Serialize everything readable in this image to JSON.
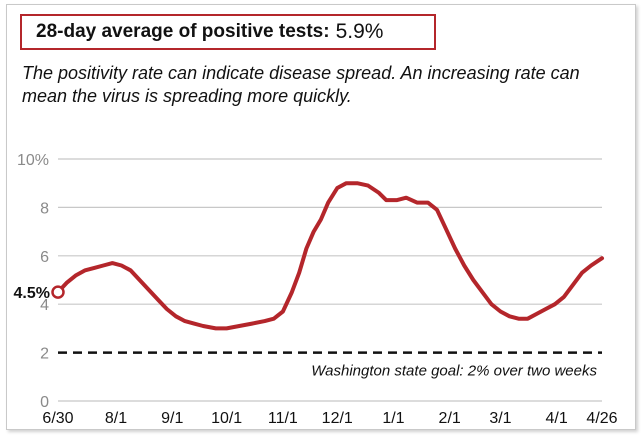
{
  "header": {
    "label": "28-day average of positive tests:",
    "value": "5.9%"
  },
  "subtitle": "The positivity rate can indicate disease spread. An increasing rate can mean the virus is spreading more quickly.",
  "colors": {
    "line": "#b4262b",
    "grid": "#c8c8c8",
    "goal": "#111111"
  },
  "chart_data": {
    "type": "line",
    "ylim": [
      0,
      10
    ],
    "yticks": [
      {
        "value": 0,
        "label": "0"
      },
      {
        "value": 2,
        "label": "2"
      },
      {
        "value": 4,
        "label": "4"
      },
      {
        "value": 6,
        "label": "6"
      },
      {
        "value": 8,
        "label": "8"
      },
      {
        "value": 10,
        "label": "10%"
      }
    ],
    "xlim": [
      "2020-06-30",
      "2021-04-26"
    ],
    "xticks": [
      {
        "date": "2020-06-30",
        "label": "6/30"
      },
      {
        "date": "2020-08-01",
        "label": "8/1"
      },
      {
        "date": "2020-09-01",
        "label": "9/1"
      },
      {
        "date": "2020-10-01",
        "label": "10/1"
      },
      {
        "date": "2020-11-01",
        "label": "11/1"
      },
      {
        "date": "2020-12-01",
        "label": "12/1"
      },
      {
        "date": "2021-01-01",
        "label": "1/1"
      },
      {
        "date": "2021-02-01",
        "label": "2/1"
      },
      {
        "date": "2021-03-01",
        "label": "3/1"
      },
      {
        "date": "2021-04-01",
        "label": "4/1"
      },
      {
        "date": "2021-04-26",
        "label": "4/26"
      }
    ],
    "start_label": "4.5%",
    "goal": {
      "value": 2,
      "label": "Washington state goal: 2% over two weeks"
    },
    "series": [
      {
        "points": [
          [
            "2020-06-30",
            4.5
          ],
          [
            "2020-07-05",
            4.9
          ],
          [
            "2020-07-10",
            5.2
          ],
          [
            "2020-07-15",
            5.4
          ],
          [
            "2020-07-20",
            5.5
          ],
          [
            "2020-07-25",
            5.6
          ],
          [
            "2020-07-30",
            5.7
          ],
          [
            "2020-08-04",
            5.6
          ],
          [
            "2020-08-09",
            5.4
          ],
          [
            "2020-08-14",
            5.0
          ],
          [
            "2020-08-19",
            4.6
          ],
          [
            "2020-08-24",
            4.2
          ],
          [
            "2020-08-29",
            3.8
          ],
          [
            "2020-09-03",
            3.5
          ],
          [
            "2020-09-08",
            3.3
          ],
          [
            "2020-09-13",
            3.2
          ],
          [
            "2020-09-18",
            3.1
          ],
          [
            "2020-09-25",
            3.0
          ],
          [
            "2020-10-01",
            3.0
          ],
          [
            "2020-10-08",
            3.1
          ],
          [
            "2020-10-15",
            3.2
          ],
          [
            "2020-10-22",
            3.3
          ],
          [
            "2020-10-27",
            3.4
          ],
          [
            "2020-11-01",
            3.7
          ],
          [
            "2020-11-06",
            4.5
          ],
          [
            "2020-11-10",
            5.3
          ],
          [
            "2020-11-14",
            6.3
          ],
          [
            "2020-11-18",
            7.0
          ],
          [
            "2020-11-22",
            7.5
          ],
          [
            "2020-11-26",
            8.2
          ],
          [
            "2020-12-01",
            8.8
          ],
          [
            "2020-12-06",
            9.0
          ],
          [
            "2020-12-12",
            9.0
          ],
          [
            "2020-12-18",
            8.9
          ],
          [
            "2020-12-24",
            8.6
          ],
          [
            "2020-12-28",
            8.3
          ],
          [
            "2021-01-03",
            8.3
          ],
          [
            "2021-01-08",
            8.4
          ],
          [
            "2021-01-14",
            8.2
          ],
          [
            "2021-01-20",
            8.2
          ],
          [
            "2021-01-25",
            7.9
          ],
          [
            "2021-01-30",
            7.1
          ],
          [
            "2021-02-04",
            6.3
          ],
          [
            "2021-02-09",
            5.6
          ],
          [
            "2021-02-14",
            5.0
          ],
          [
            "2021-02-19",
            4.5
          ],
          [
            "2021-02-24",
            4.0
          ],
          [
            "2021-03-01",
            3.7
          ],
          [
            "2021-03-06",
            3.5
          ],
          [
            "2021-03-11",
            3.4
          ],
          [
            "2021-03-16",
            3.4
          ],
          [
            "2021-03-21",
            3.6
          ],
          [
            "2021-03-26",
            3.8
          ],
          [
            "2021-03-31",
            4.0
          ],
          [
            "2021-04-05",
            4.3
          ],
          [
            "2021-04-10",
            4.8
          ],
          [
            "2021-04-15",
            5.3
          ],
          [
            "2021-04-20",
            5.6
          ],
          [
            "2021-04-26",
            5.9
          ]
        ]
      }
    ]
  }
}
